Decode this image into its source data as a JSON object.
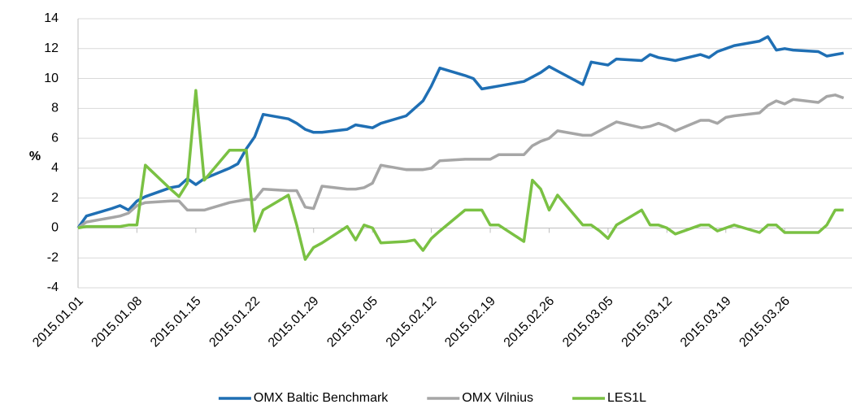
{
  "chart_data": {
    "type": "line",
    "y_label": "%",
    "x": [
      "2015.01.01",
      "2015.01.02",
      "2015.01.05",
      "2015.01.06",
      "2015.01.07",
      "2015.01.08",
      "2015.01.09",
      "2015.01.12",
      "2015.01.13",
      "2015.01.14",
      "2015.01.15",
      "2015.01.16",
      "2015.01.19",
      "2015.01.20",
      "2015.01.21",
      "2015.01.22",
      "2015.01.23",
      "2015.01.26",
      "2015.01.27",
      "2015.01.28",
      "2015.01.29",
      "2015.01.30",
      "2015.02.02",
      "2015.02.03",
      "2015.02.04",
      "2015.02.05",
      "2015.02.06",
      "2015.02.09",
      "2015.02.10",
      "2015.02.11",
      "2015.02.12",
      "2015.02.13",
      "2015.02.16",
      "2015.02.17",
      "2015.02.18",
      "2015.02.19",
      "2015.02.20",
      "2015.02.23",
      "2015.02.24",
      "2015.02.25",
      "2015.02.26",
      "2015.02.27",
      "2015.03.02",
      "2015.03.03",
      "2015.03.04",
      "2015.03.05",
      "2015.03.06",
      "2015.03.09",
      "2015.03.10",
      "2015.03.11",
      "2015.03.12",
      "2015.03.13",
      "2015.03.16",
      "2015.03.17",
      "2015.03.18",
      "2015.03.19",
      "2015.03.20",
      "2015.03.23",
      "2015.03.24",
      "2015.03.25",
      "2015.03.26",
      "2015.03.27",
      "2015.03.30",
      "2015.03.31",
      "2015.04.01",
      "2015.04.02"
    ],
    "series": [
      {
        "name": "OMX Baltic Benchmark",
        "color": "#1f6fb4",
        "values": [
          0,
          0.8,
          1.3,
          1.5,
          1.2,
          1.8,
          2.1,
          2.7,
          2.8,
          3.3,
          2.9,
          3.3,
          4.0,
          4.3,
          5.3,
          6.1,
          7.6,
          7.3,
          7.0,
          6.6,
          6.4,
          6.4,
          6.6,
          6.9,
          6.8,
          6.7,
          7.0,
          7.5,
          8.0,
          8.5,
          9.5,
          10.7,
          10.2,
          10.0,
          9.3,
          9.4,
          9.5,
          9.8,
          10.1,
          10.4,
          10.8,
          10.5,
          9.6,
          11.1,
          11.0,
          10.9,
          11.3,
          11.2,
          11.6,
          11.4,
          11.3,
          11.2,
          11.6,
          11.4,
          11.8,
          12.0,
          12.2,
          12.5,
          12.8,
          11.9,
          12.0,
          11.9,
          11.8,
          11.5,
          11.6,
          11.7
        ]
      },
      {
        "name": "OMX Vilnius",
        "color": "#a6a6a6",
        "values": [
          0,
          0.4,
          0.7,
          0.8,
          1.0,
          1.5,
          1.7,
          1.8,
          1.8,
          1.2,
          1.2,
          1.2,
          1.7,
          1.8,
          1.9,
          1.9,
          2.6,
          2.5,
          2.5,
          1.4,
          1.3,
          2.8,
          2.6,
          2.6,
          2.7,
          3.0,
          4.2,
          3.9,
          3.9,
          3.9,
          4.0,
          4.5,
          4.6,
          4.6,
          4.6,
          4.6,
          4.9,
          4.9,
          5.5,
          5.8,
          6.0,
          6.5,
          6.2,
          6.2,
          6.5,
          6.8,
          7.1,
          6.7,
          6.8,
          7.0,
          6.8,
          6.5,
          7.2,
          7.2,
          7.0,
          7.4,
          7.5,
          7.7,
          8.2,
          8.5,
          8.3,
          8.6,
          8.4,
          8.8,
          8.9,
          8.7
        ]
      },
      {
        "name": "LES1L",
        "color": "#7ac143",
        "values": [
          0,
          0.1,
          0.1,
          0.1,
          0.2,
          0.2,
          4.2,
          2.6,
          2.1,
          3.0,
          9.2,
          3.2,
          5.2,
          5.2,
          5.2,
          -0.2,
          1.2,
          2.2,
          0.2,
          -2.1,
          -1.3,
          -1.0,
          0.1,
          -0.8,
          0.2,
          0.0,
          -1.0,
          -0.9,
          -0.8,
          -1.5,
          -0.7,
          -0.2,
          1.2,
          1.2,
          1.2,
          0.2,
          0.2,
          -0.9,
          3.2,
          2.6,
          1.2,
          2.2,
          0.2,
          0.2,
          -0.2,
          -0.7,
          0.2,
          1.2,
          0.2,
          0.2,
          0.0,
          -0.4,
          0.2,
          0.2,
          -0.2,
          0.0,
          0.2,
          -0.3,
          0.2,
          0.2,
          -0.3,
          -0.3,
          -0.3,
          0.2,
          1.2,
          1.2
        ]
      }
    ],
    "xlim": [
      "2015.01.01",
      "2015.04.03"
    ],
    "xticks": [
      "2015.01.01",
      "2015.01.08",
      "2015.01.15",
      "2015.01.22",
      "2015.01.29",
      "2015.02.05",
      "2015.02.12",
      "2015.02.19",
      "2015.02.26",
      "2015.03.05",
      "2015.03.12",
      "2015.03.19",
      "2015.03.26"
    ],
    "ylim": [
      -4,
      14
    ],
    "yticks": [
      -4,
      -2,
      0,
      2,
      4,
      6,
      8,
      10,
      12,
      14
    ],
    "grid": true,
    "legend": "bottom"
  }
}
